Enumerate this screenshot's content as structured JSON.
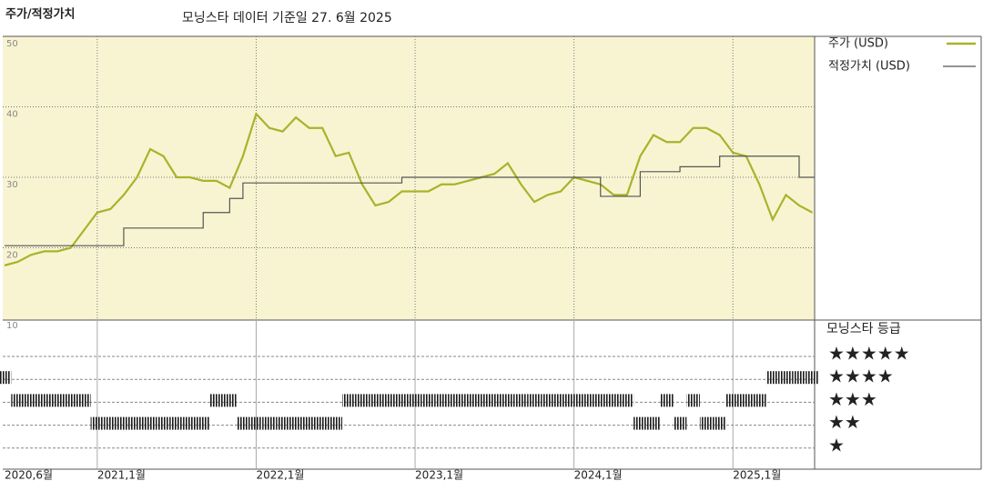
{
  "chart_data": [
    {
      "type": "line",
      "title": "주가/적정가치",
      "subtitle": "모닝스타 데이터 기준일 27. 6월 2025",
      "x": [
        "2020-06",
        "2020-07",
        "2020-08",
        "2020-09",
        "2020-10",
        "2020-11",
        "2020-12",
        "2021-01",
        "2021-02",
        "2021-03",
        "2021-04",
        "2021-05",
        "2021-06",
        "2021-07",
        "2021-08",
        "2021-09",
        "2021-10",
        "2021-11",
        "2021-12",
        "2022-01",
        "2022-02",
        "2022-03",
        "2022-04",
        "2022-05",
        "2022-06",
        "2022-07",
        "2022-08",
        "2022-09",
        "2022-10",
        "2022-11",
        "2022-12",
        "2023-01",
        "2023-02",
        "2023-03",
        "2023-04",
        "2023-05",
        "2023-06",
        "2023-07",
        "2023-08",
        "2023-09",
        "2023-10",
        "2023-11",
        "2023-12",
        "2024-01",
        "2024-02",
        "2024-03",
        "2024-04",
        "2024-05",
        "2024-06",
        "2024-07",
        "2024-08",
        "2024-09",
        "2024-10",
        "2024-11",
        "2024-12",
        "2025-01",
        "2025-02",
        "2025-03",
        "2025-04",
        "2025-05",
        "2025-06",
        "2025-07"
      ],
      "xticks": [
        {
          "value": "2020-06",
          "label": "2020,6월"
        },
        {
          "value": "2021-01",
          "label": "2021,1월"
        },
        {
          "value": "2022-01",
          "label": "2022,1월"
        },
        {
          "value": "2023-01",
          "label": "2023,1월"
        },
        {
          "value": "2024-01",
          "label": "2024,1월"
        },
        {
          "value": "2025-01",
          "label": "2025,1월"
        }
      ],
      "ylim": [
        10,
        50
      ],
      "yticks": [
        10,
        20,
        30,
        40,
        50
      ],
      "grid": true,
      "series": [
        {
          "name": "주가 (USD)",
          "color": "#a9b32b",
          "values": [
            17.5,
            18,
            19,
            19.5,
            19.5,
            20,
            22.5,
            25,
            25.5,
            27.5,
            30,
            34,
            33,
            30,
            30,
            29.5,
            29.5,
            28.5,
            33,
            39,
            37,
            36.5,
            38.5,
            37,
            37,
            33,
            33.5,
            29,
            26,
            26.5,
            28,
            28,
            28,
            29,
            29,
            29.5,
            30,
            30.5,
            32,
            29,
            26.5,
            27.5,
            28,
            30,
            29.5,
            29,
            27.5,
            27.5,
            33,
            36,
            35,
            35,
            37,
            37,
            36,
            33.5,
            33,
            29,
            24,
            27.5,
            26,
            25
          ]
        },
        {
          "name": "적정가치 (USD)",
          "color": "#555555",
          "step": true,
          "values": [
            20.3,
            20.3,
            20.3,
            20.3,
            20.3,
            20.3,
            20.3,
            20.3,
            20.3,
            22.8,
            22.8,
            22.8,
            22.8,
            22.8,
            22.8,
            25,
            25,
            27,
            29.2,
            29.2,
            29.2,
            29.2,
            29.2,
            29.2,
            29.2,
            29.2,
            29.2,
            29.2,
            29.2,
            29.2,
            30,
            30,
            30,
            30,
            30,
            30,
            30,
            30,
            30,
            30,
            30,
            30,
            30,
            30,
            30,
            27.3,
            27.3,
            27.3,
            30.8,
            30.8,
            30.8,
            31.5,
            31.5,
            31.5,
            33,
            33,
            33,
            33,
            33,
            33,
            30,
            30
          ]
        }
      ]
    },
    {
      "type": "strip",
      "title": "모닝스타 등급",
      "color": "#1a1a1a",
      "levels": [
        {
          "value": 5,
          "label": "★★★★★"
        },
        {
          "value": 4,
          "label": "★★★★"
        },
        {
          "value": 3,
          "label": "★★★"
        },
        {
          "value": 2,
          "label": "★★"
        },
        {
          "value": 1,
          "label": "★"
        }
      ],
      "values": [
        4,
        3,
        3,
        3,
        3,
        3,
        3,
        2,
        2,
        2,
        2,
        2,
        2,
        2,
        2,
        2,
        3,
        3,
        2,
        2,
        2,
        2,
        2,
        2,
        2,
        2,
        3,
        3,
        3,
        3,
        3,
        3,
        3,
        3,
        3,
        3,
        3,
        3,
        3,
        3,
        3,
        3,
        3,
        3,
        3,
        3,
        3,
        3,
        2,
        2,
        3,
        2,
        3,
        2,
        2,
        3,
        3,
        3,
        4,
        4,
        4,
        4
      ]
    }
  ]
}
